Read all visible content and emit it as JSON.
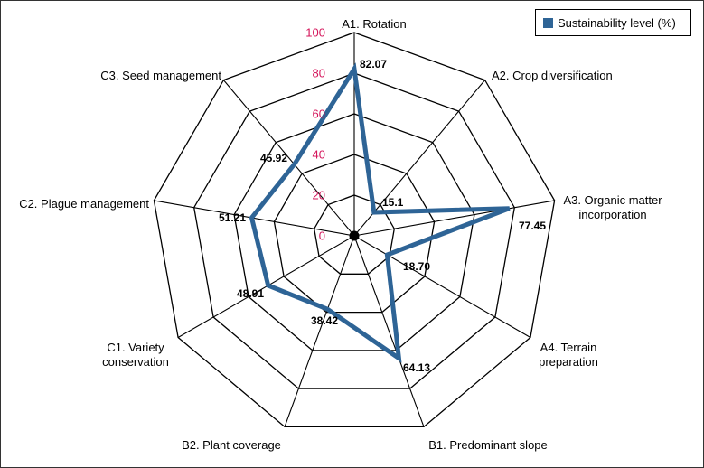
{
  "chart_data": {
    "type": "radar",
    "categories": [
      "A1. Rotation",
      "A2. Crop diversification",
      "A3. Organic matter incorporation",
      "A4. Terrain preparation",
      "B1. Predominant slope",
      "B2. Plant coverage",
      "C1. Variety conservation",
      "C2. Plague management",
      "C3. Seed management"
    ],
    "category_lines": [
      [
        "A1. Rotation"
      ],
      [
        "A2. Crop diversification"
      ],
      [
        "A3. Organic matter",
        "incorporation"
      ],
      [
        "A4. Terrain",
        "preparation"
      ],
      [
        "B1. Predominant slope"
      ],
      [
        "B2. Plant coverage"
      ],
      [
        "C1. Variety",
        "conservation"
      ],
      [
        "C2. Plague management"
      ],
      [
        "C3. Seed management"
      ]
    ],
    "series": [
      {
        "name": "Sustainability level (%)",
        "values": [
          82.07,
          15.1,
          77.45,
          18.7,
          64.13,
          38.42,
          48.91,
          51.21,
          45.92
        ],
        "value_labels": [
          "82.07",
          "15.1",
          "77.45",
          "18.70",
          "64.13",
          "38.42",
          "48.91",
          "51.21",
          "45.92"
        ],
        "color": "#2e6496"
      }
    ],
    "rlim": [
      0,
      100
    ],
    "ticks": [
      0,
      20,
      40,
      60,
      80,
      100
    ],
    "tick_labels": [
      "0",
      "20",
      "40",
      "60",
      "80",
      "100"
    ],
    "tick_color": "#d4145a",
    "legend": "top-right",
    "grid": true
  }
}
